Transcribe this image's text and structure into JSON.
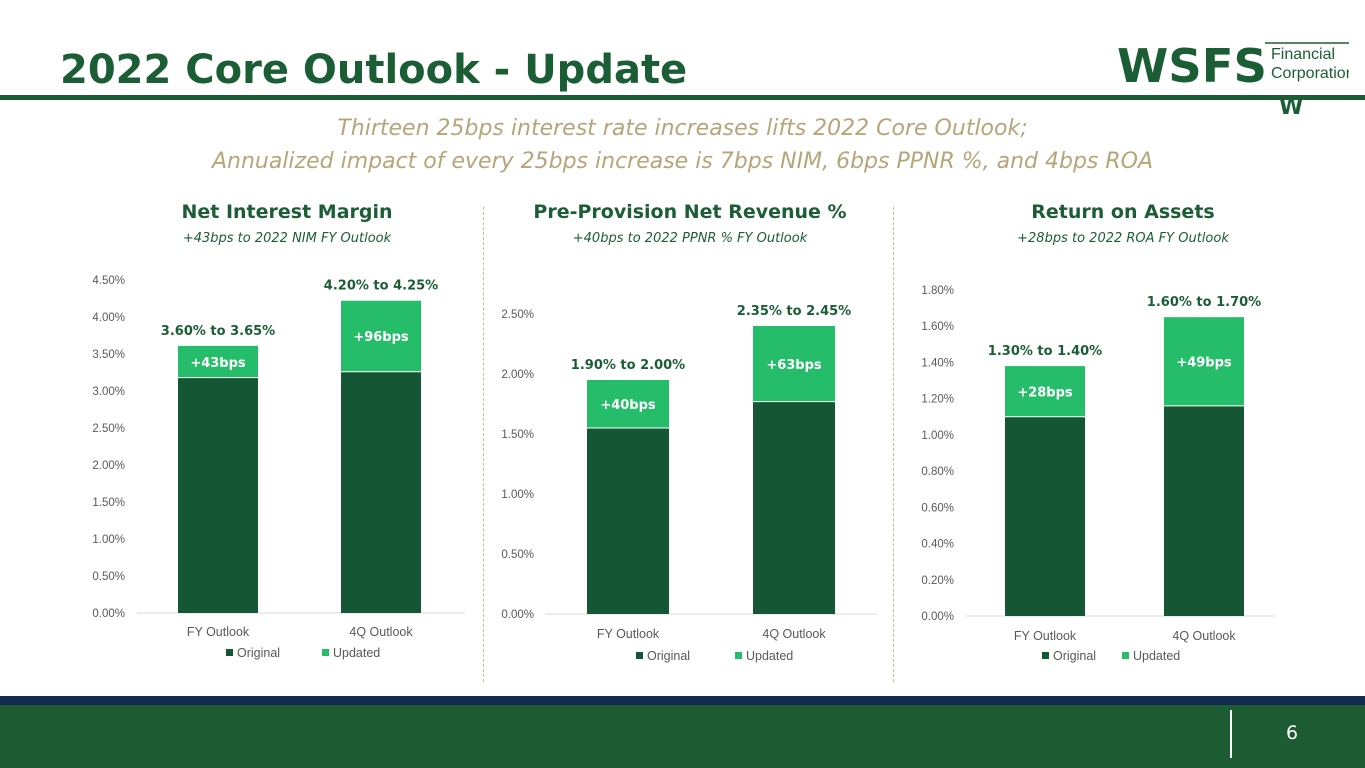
{
  "slide": {
    "title": "2022 Core Outlook - Update",
    "page_number": "6",
    "subtitle_line1": "Thirteen 25bps interest rate increases lifts 2022 Core Outlook;",
    "subtitle_line2": "Annualized impact of every 25bps increase is 7bps NIM, 6bps PPNR %, and 4bps ROA"
  },
  "logo": {
    "wordmark": "WSFS",
    "line1": "Financial",
    "line2": "Corporation",
    "emblem": "W"
  },
  "colors": {
    "brand_green": "#1b5e35",
    "original": "#155734",
    "updated": "#26bd6a",
    "accent_gold": "#b7a57a",
    "footer": "#1d5b33",
    "footer_stripe": "#122a4e"
  },
  "panels": [
    {
      "title": "Net Interest Margin",
      "subtitle": "+43bps to 2022 NIM FY Outlook"
    },
    {
      "title": "Pre-Provision Net Revenue %",
      "subtitle": "+40bps to 2022 PPNR % FY Outlook"
    },
    {
      "title": "Return on Assets",
      "subtitle": "+28bps to 2022 ROA FY Outlook"
    }
  ],
  "chart_data": [
    {
      "type": "bar",
      "stacked": true,
      "title": "Net Interest Margin",
      "categories": [
        "FY Outlook",
        "4Q Outlook"
      ],
      "series": [
        {
          "name": "Original",
          "values": [
            3.18,
            3.26
          ]
        },
        {
          "name": "Updated",
          "values": [
            0.43,
            0.96
          ]
        }
      ],
      "segment_labels": [
        "+43bps",
        "+96bps"
      ],
      "total_labels": [
        "3.60% to 3.65%",
        "4.20% to 4.25%"
      ],
      "yticks": [
        "0.00%",
        "0.50%",
        "1.00%",
        "1.50%",
        "2.00%",
        "2.50%",
        "3.00%",
        "3.50%",
        "4.00%",
        "4.50%"
      ],
      "ylim": [
        0,
        4.5
      ],
      "legend": "bottom"
    },
    {
      "type": "bar",
      "stacked": true,
      "title": "Pre-Provision Net Revenue %",
      "categories": [
        "FY Outlook",
        "4Q Outlook"
      ],
      "series": [
        {
          "name": "Original",
          "values": [
            1.55,
            1.77
          ]
        },
        {
          "name": "Updated",
          "values": [
            0.4,
            0.63
          ]
        }
      ],
      "segment_labels": [
        "+40bps",
        "+63bps"
      ],
      "total_labels": [
        "1.90% to 2.00%",
        "2.35% to 2.45%"
      ],
      "yticks": [
        "0.00%",
        "0.50%",
        "1.00%",
        "1.50%",
        "2.00%",
        "2.50%"
      ],
      "ylim": [
        0,
        2.5
      ],
      "legend": "bottom"
    },
    {
      "type": "bar",
      "stacked": true,
      "title": "Return on Assets",
      "categories": [
        "FY Outlook",
        "4Q Outlook"
      ],
      "series": [
        {
          "name": "Original",
          "values": [
            1.1,
            1.16
          ]
        },
        {
          "name": "Updated",
          "values": [
            0.28,
            0.49
          ]
        }
      ],
      "segment_labels": [
        "+28bps",
        "+49bps"
      ],
      "total_labels": [
        "1.30% to 1.40%",
        "1.60% to 1.70%"
      ],
      "yticks": [
        "0.00%",
        "0.20%",
        "0.40%",
        "0.60%",
        "0.80%",
        "1.00%",
        "1.20%",
        "1.40%",
        "1.60%",
        "1.80%"
      ],
      "ylim": [
        0,
        1.8
      ],
      "legend": "bottom"
    }
  ]
}
